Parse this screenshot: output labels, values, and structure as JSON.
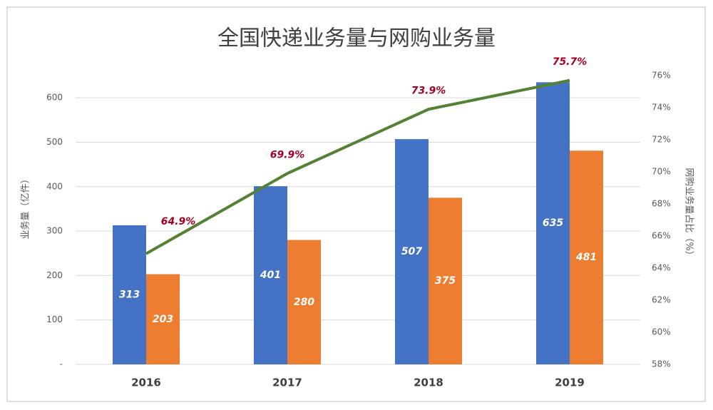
{
  "chart_data": {
    "type": "bar",
    "title": "全国快递业务量与网购业务量",
    "y_label": "业务量（亿件）",
    "y2_label": "网购业务量占比（%）",
    "categories": [
      "2016",
      "2017",
      "2018",
      "2019"
    ],
    "series": [
      {
        "type": "bar",
        "color": "#4472c4",
        "values": [
          313,
          401,
          507,
          635
        ]
      },
      {
        "type": "bar",
        "color": "#ed7d31",
        "values": [
          203,
          280,
          375,
          481
        ]
      },
      {
        "type": "line",
        "axis": "y2",
        "color": "#548235",
        "values": [
          64.9,
          69.9,
          73.9,
          75.7
        ],
        "value_labels": [
          "64.9%",
          "69.9%",
          "73.9%",
          "75.7%"
        ]
      }
    ],
    "ylim": [
      0,
      650
    ],
    "yticks": [
      {
        "value": 0,
        "label": "-"
      },
      100,
      200,
      300,
      400,
      500,
      600
    ],
    "y2lim": [
      58,
      76
    ],
    "y2ticks": [
      {
        "value": 58,
        "label": "58%"
      },
      {
        "value": 60,
        "label": "60%"
      },
      {
        "value": 62,
        "label": "62%"
      },
      {
        "value": 64,
        "label": "64%"
      },
      {
        "value": 66,
        "label": "66%"
      },
      {
        "value": 68,
        "label": "68%"
      },
      {
        "value": 70,
        "label": "70%"
      },
      {
        "value": 72,
        "label": "72%"
      },
      {
        "value": 74,
        "label": "74%"
      },
      {
        "value": 76,
        "label": "76%"
      }
    ],
    "grid": true
  }
}
